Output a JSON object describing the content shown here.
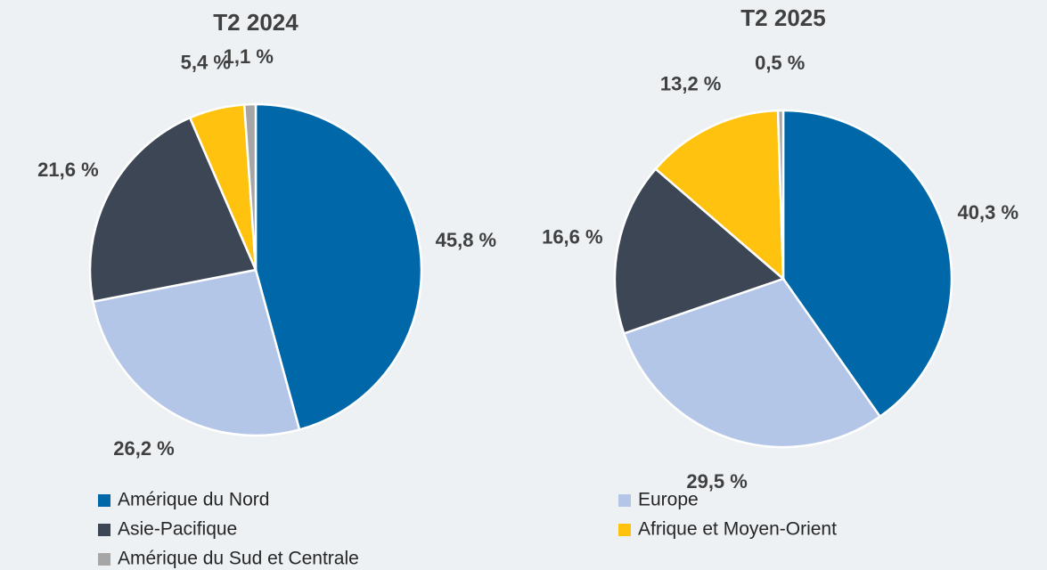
{
  "chart_data": [
    {
      "type": "pie",
      "title": "T2 2024",
      "categories": [
        "Amérique du Nord",
        "Europe",
        "Asie-Pacifique",
        "Afrique et Moyen-Orient",
        "Amérique du Sud et Centrale"
      ],
      "values": [
        45.8,
        26.2,
        21.6,
        5.4,
        1.1
      ],
      "value_labels": [
        "45,8 %",
        "26,2 %",
        "21,6 %",
        "5,4 %",
        "1,1 %"
      ],
      "colors": [
        "#0067a8",
        "#b4c6e7",
        "#3c4655",
        "#ffc20e",
        "#a6a6a6"
      ]
    },
    {
      "type": "pie",
      "title": "T2 2025",
      "categories": [
        "Amérique du Nord",
        "Europe",
        "Asie-Pacifique",
        "Afrique et Moyen-Orient",
        "Amérique du Sud et Centrale"
      ],
      "values": [
        40.3,
        29.5,
        16.6,
        13.2,
        0.5
      ],
      "value_labels": [
        "40,3 %",
        "29,5 %",
        "16,6 %",
        "13,2 %",
        "0,5 %"
      ],
      "colors": [
        "#0067a8",
        "#b4c6e7",
        "#3c4655",
        "#ffc20e",
        "#a6a6a6"
      ]
    }
  ]
}
